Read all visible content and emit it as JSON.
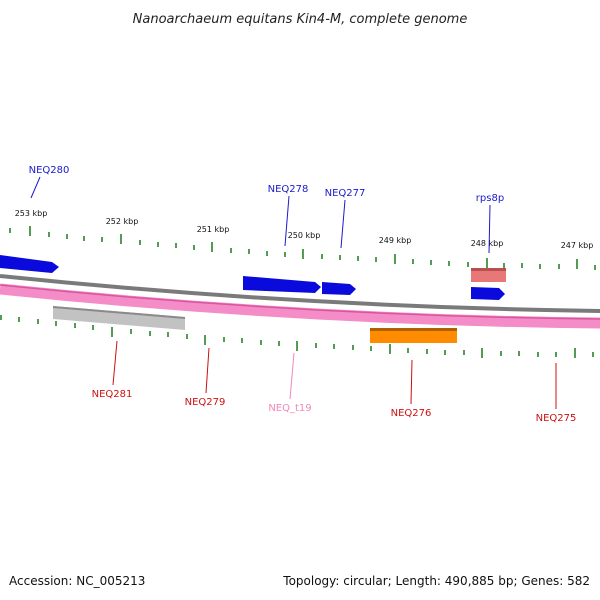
{
  "title": "Nanoarchaeum equitans Kin4-M, complete genome",
  "footer": {
    "accession": "Accession: NC_005213",
    "summary": "Topology: circular; Length: 490,885 bp; Genes: 582"
  },
  "colors": {
    "tick": "#1a7a1a",
    "backbone_outer": "#808080",
    "backbone_inner": "#f48cc8",
    "label_blue": "#1a1acc",
    "label_red": "#cc1111",
    "label_pink": "#ee88bb",
    "gene_blue": "#0a0adc",
    "gene_gray": "#b8b8b8",
    "gene_orange": "#ff8c00",
    "gene_salmon": "#e87878"
  },
  "scale": {
    "labels": [
      "253 kbp",
      "252 kbp",
      "251 kbp",
      "250 kbp",
      "249 kbp",
      "248 kbp",
      "247 kbp"
    ]
  },
  "genes_top": [
    {
      "label": "NEQ280",
      "color": "blue"
    },
    {
      "label": "NEQ278",
      "color": "blue"
    },
    {
      "label": "NEQ277",
      "color": "blue"
    },
    {
      "label": "rps8p",
      "color": "blue"
    }
  ],
  "genes_bottom": [
    {
      "label": "NEQ281",
      "color": "red"
    },
    {
      "label": "NEQ279",
      "color": "red"
    },
    {
      "label": "NEQ_t19",
      "color": "pink"
    },
    {
      "label": "NEQ276",
      "color": "red"
    },
    {
      "label": "NEQ275",
      "color": "red"
    }
  ]
}
